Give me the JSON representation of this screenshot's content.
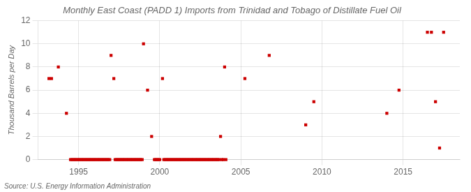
{
  "chart_data": {
    "type": "scatter",
    "title": "Monthly East Coast (PADD 1) Imports from Trinidad and Tobago of Distillate Fuel Oil",
    "ylabel": "Thousand Barrels per Day",
    "annotations": [
      "Source: U.S. Energy Information Administration"
    ],
    "color": "#cc0000",
    "marker": "square",
    "grid": true,
    "xlim": [
      1992.5,
      2018.5
    ],
    "ylim": [
      0,
      12
    ],
    "xticks": [
      1995,
      2000,
      2005,
      2010,
      2015
    ],
    "yticks": [
      0,
      2,
      4,
      6,
      8,
      10,
      12
    ],
    "x": [
      1993.17,
      1993.33,
      1993.75,
      1994.25,
      1994.5,
      1994.58,
      1994.67,
      1994.75,
      1994.83,
      1994.92,
      1995.0,
      1995.08,
      1995.17,
      1995.25,
      1995.33,
      1995.42,
      1995.5,
      1995.58,
      1995.67,
      1995.75,
      1995.83,
      1995.92,
      1996.0,
      1996.08,
      1996.17,
      1996.25,
      1996.33,
      1996.42,
      1996.5,
      1996.58,
      1996.67,
      1996.75,
      1996.83,
      1996.92,
      1997.0,
      1997.17,
      1997.25,
      1997.33,
      1997.42,
      1997.5,
      1997.58,
      1997.67,
      1997.75,
      1997.83,
      1997.92,
      1998.0,
      1998.08,
      1998.17,
      1998.25,
      1998.33,
      1998.42,
      1998.5,
      1998.58,
      1998.67,
      1998.75,
      1998.83,
      1998.92,
      1999.0,
      1999.25,
      1999.5,
      1999.67,
      1999.75,
      1999.83,
      1999.92,
      2000.0,
      2000.17,
      2000.25,
      2000.33,
      2000.42,
      2000.5,
      2000.58,
      2000.67,
      2000.75,
      2000.83,
      2000.92,
      2001.0,
      2001.08,
      2001.17,
      2001.25,
      2001.33,
      2001.42,
      2001.5,
      2001.58,
      2001.67,
      2001.75,
      2001.83,
      2001.92,
      2002.0,
      2002.08,
      2002.17,
      2002.25,
      2002.33,
      2002.42,
      2002.5,
      2002.58,
      2002.67,
      2002.75,
      2002.83,
      2002.92,
      2003.0,
      2003.08,
      2003.17,
      2003.25,
      2003.33,
      2003.42,
      2003.5,
      2003.58,
      2003.67,
      2003.75,
      2003.83,
      2003.92,
      2004.0,
      2004.08,
      2005.25,
      2006.75,
      2009.0,
      2009.5,
      2014.0,
      2014.75,
      2016.5,
      2016.75,
      2017.0,
      2017.25,
      2017.5
    ],
    "values": [
      7,
      7,
      8,
      4,
      0,
      0,
      0,
      0,
      0,
      0,
      0,
      0,
      0,
      0,
      0,
      0,
      0,
      0,
      0,
      0,
      0,
      0,
      0,
      0,
      0,
      0,
      0,
      0,
      0,
      0,
      0,
      0,
      0,
      0,
      9,
      7,
      0,
      0,
      0,
      0,
      0,
      0,
      0,
      0,
      0,
      0,
      0,
      0,
      0,
      0,
      0,
      0,
      0,
      0,
      0,
      0,
      0,
      10,
      6,
      2,
      0,
      0,
      0,
      0,
      0,
      7,
      0,
      0,
      0,
      0,
      0,
      0,
      0,
      0,
      0,
      0,
      0,
      0,
      0,
      0,
      0,
      0,
      0,
      0,
      0,
      0,
      0,
      0,
      0,
      0,
      0,
      0,
      0,
      0,
      0,
      0,
      0,
      0,
      0,
      0,
      0,
      0,
      0,
      0,
      0,
      0,
      0,
      0,
      2,
      0,
      0,
      8,
      0,
      7,
      9,
      3,
      5,
      4,
      6,
      11,
      11,
      5,
      1,
      11
    ]
  }
}
